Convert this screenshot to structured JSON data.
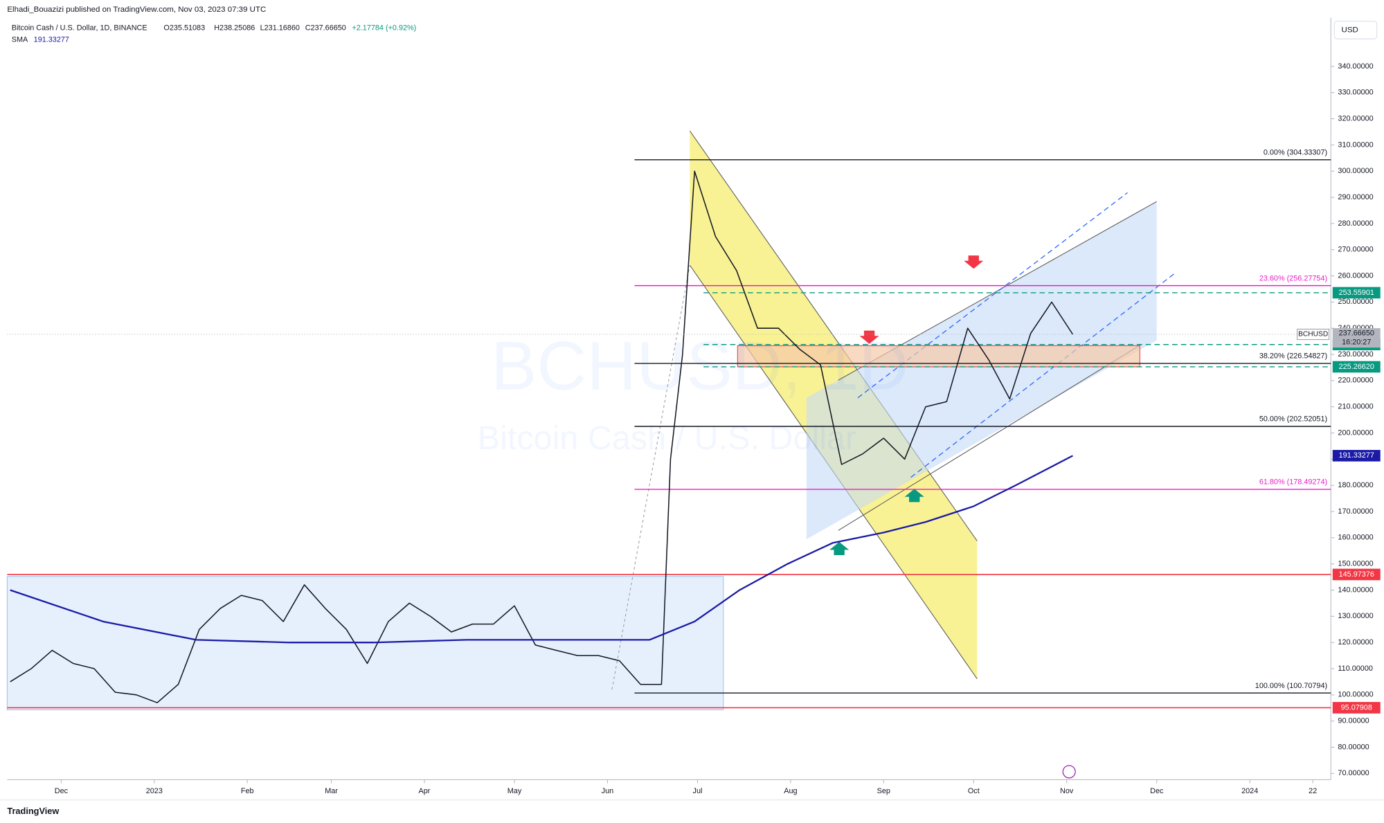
{
  "header": {
    "published": "Elhadi_Bouazizi published on TradingView.com, Nov 03, 2023 07:39 UTC",
    "symbol": "Bitcoin Cash / U.S. Dollar, 1D, BINANCE",
    "open": "O235.51083",
    "high": "H238.25086",
    "low": "L231.16860",
    "close": "C237.66650",
    "change": "+2.17784 (+0.92%)",
    "sma": "SMA",
    "sma_value": "191.33277"
  },
  "footer": {
    "brand": "TradingView"
  },
  "chart_data": {
    "type": "line",
    "currency": "USD",
    "watermark": {
      "symbol": "BCHUSD, 1D",
      "name": "Bitcoin Cash / U.S. Dollar"
    },
    "xlim": [
      "2022-11-13",
      "2024-01-28"
    ],
    "xticks": [
      {
        "value": "2022-12-01",
        "label": "Dec"
      },
      {
        "value": "2023-01-01",
        "label": "2023"
      },
      {
        "value": "2023-02-01",
        "label": "Feb"
      },
      {
        "value": "2023-03-01",
        "label": "Mar"
      },
      {
        "value": "2023-04-01",
        "label": "Apr"
      },
      {
        "value": "2023-05-01",
        "label": "May"
      },
      {
        "value": "2023-06-01",
        "label": "Jun"
      },
      {
        "value": "2023-07-01",
        "label": "Jul"
      },
      {
        "value": "2023-08-01",
        "label": "Aug"
      },
      {
        "value": "2023-09-01",
        "label": "Sep"
      },
      {
        "value": "2023-10-01",
        "label": "Oct"
      },
      {
        "value": "2023-11-01",
        "label": "Nov"
      },
      {
        "value": "2023-12-01",
        "label": "Dec"
      },
      {
        "value": "2024-01-01",
        "label": "2024"
      },
      {
        "value": "2024-01-22",
        "label": "22"
      }
    ],
    "ylim": [
      67.6,
      358.6
    ],
    "yticks": [
      {
        "value": 70,
        "label": "70.00000"
      },
      {
        "value": 80,
        "label": "80.00000"
      },
      {
        "value": 90,
        "label": "90.00000"
      },
      {
        "value": 100,
        "label": "100.00000"
      },
      {
        "value": 110,
        "label": "110.00000"
      },
      {
        "value": 120,
        "label": "120.00000"
      },
      {
        "value": 130,
        "label": "130.00000"
      },
      {
        "value": 140,
        "label": "140.00000"
      },
      {
        "value": 150,
        "label": "150.00000"
      },
      {
        "value": 160,
        "label": "160.00000"
      },
      {
        "value": 170,
        "label": "170.00000"
      },
      {
        "value": 180,
        "label": "180.00000"
      },
      {
        "value": 190,
        "label": "190.00000"
      },
      {
        "value": 200,
        "label": "200.00000"
      },
      {
        "value": 210,
        "label": "210.00000"
      },
      {
        "value": 220,
        "label": "220.00000"
      },
      {
        "value": 230,
        "label": "230.00000"
      },
      {
        "value": 240,
        "label": "240.00000"
      },
      {
        "value": 250,
        "label": "250.00000"
      },
      {
        "value": 260,
        "label": "260.00000"
      },
      {
        "value": 270,
        "label": "270.00000"
      },
      {
        "value": 280,
        "label": "280.00000"
      },
      {
        "value": 290,
        "label": "290.00000"
      },
      {
        "value": 300,
        "label": "300.00000"
      },
      {
        "value": 310,
        "label": "310.00000"
      },
      {
        "value": 320,
        "label": "320.00000"
      },
      {
        "value": 330,
        "label": "330.00000"
      },
      {
        "value": 340,
        "label": "340.00000"
      }
    ],
    "series": [
      {
        "name": "BCHUSD",
        "color": "#131722",
        "x": [
          "2022-11-14",
          "2022-11-21",
          "2022-11-28",
          "2022-12-05",
          "2022-12-12",
          "2022-12-19",
          "2022-12-26",
          "2023-01-02",
          "2023-01-09",
          "2023-01-16",
          "2023-01-23",
          "2023-01-30",
          "2023-02-06",
          "2023-02-13",
          "2023-02-20",
          "2023-02-27",
          "2023-03-06",
          "2023-03-13",
          "2023-03-20",
          "2023-03-27",
          "2023-04-03",
          "2023-04-10",
          "2023-04-17",
          "2023-04-24",
          "2023-05-01",
          "2023-05-08",
          "2023-05-15",
          "2023-05-22",
          "2023-05-29",
          "2023-06-05",
          "2023-06-12",
          "2023-06-19",
          "2023-06-22",
          "2023-06-26",
          "2023-06-30",
          "2023-07-07",
          "2023-07-14",
          "2023-07-21",
          "2023-07-28",
          "2023-08-04",
          "2023-08-11",
          "2023-08-18",
          "2023-08-25",
          "2023-09-01",
          "2023-09-08",
          "2023-09-15",
          "2023-09-22",
          "2023-09-29",
          "2023-10-06",
          "2023-10-13",
          "2023-10-20",
          "2023-10-27",
          "2023-11-03"
        ],
        "values": [
          105,
          110,
          117,
          112,
          110,
          101,
          100,
          97,
          104,
          125,
          133,
          138,
          136,
          128,
          142,
          133,
          125,
          112,
          128,
          135,
          130,
          124,
          127,
          127,
          134,
          119,
          117,
          115,
          115,
          113,
          104,
          104,
          190,
          230,
          300,
          275,
          262,
          240,
          240,
          232,
          226,
          188,
          192,
          198,
          190,
          210,
          212,
          240,
          228,
          213,
          238,
          250,
          237.6665
        ]
      },
      {
        "name": "SMA",
        "color": "#1a1aa6",
        "x": [
          "2022-11-14",
          "2022-12-15",
          "2023-01-15",
          "2023-02-15",
          "2023-03-15",
          "2023-04-15",
          "2023-05-15",
          "2023-06-15",
          "2023-06-30",
          "2023-07-15",
          "2023-07-31",
          "2023-08-15",
          "2023-09-01",
          "2023-09-15",
          "2023-10-01",
          "2023-10-15",
          "2023-11-03"
        ],
        "values": [
          140,
          128,
          121,
          120,
          120,
          121,
          121,
          121,
          128,
          140,
          150,
          158,
          162,
          166,
          172,
          180,
          191.33277
        ]
      }
    ],
    "fib_levels": [
      {
        "label": "0.00% (304.33307)",
        "value": 304.33307,
        "color": "#131722"
      },
      {
        "label": "23.60% (256.27754)",
        "value": 256.27754,
        "color": "#e91ec8"
      },
      {
        "label": "38.20% (226.54827)",
        "value": 226.54827,
        "color": "#131722"
      },
      {
        "label": "50.00% (202.52051)",
        "value": 202.52051,
        "color": "#131722"
      },
      {
        "label": "61.80% (178.49274)",
        "value": 178.49274,
        "color": "#e91ec8"
      },
      {
        "label": "100.00% (100.70794)",
        "value": 100.70794,
        "color": "#131722"
      }
    ],
    "fib_start": "2023-06-10",
    "support_lines": [
      {
        "value": 145.97376,
        "color": "#f23645"
      },
      {
        "value": 95.07908,
        "color": "#f23645"
      }
    ],
    "dashed_lines": [
      {
        "value": 253.55901,
        "color": "#089981"
      },
      {
        "value": 233.78034,
        "color": "#089981"
      },
      {
        "value": {
          "value": 225.2662,
          "label": "225.26620"
        },
        "color": "#089981"
      }
    ],
    "dashed_start": "2023-07-03",
    "last_price": {
      "symbol": "BCHUSD",
      "value": 237.6665,
      "label": "237.66650",
      "countdown": "16:20:27"
    },
    "sma_tag": {
      "value": 191.33277,
      "color": "#1a1aa6"
    }
  }
}
